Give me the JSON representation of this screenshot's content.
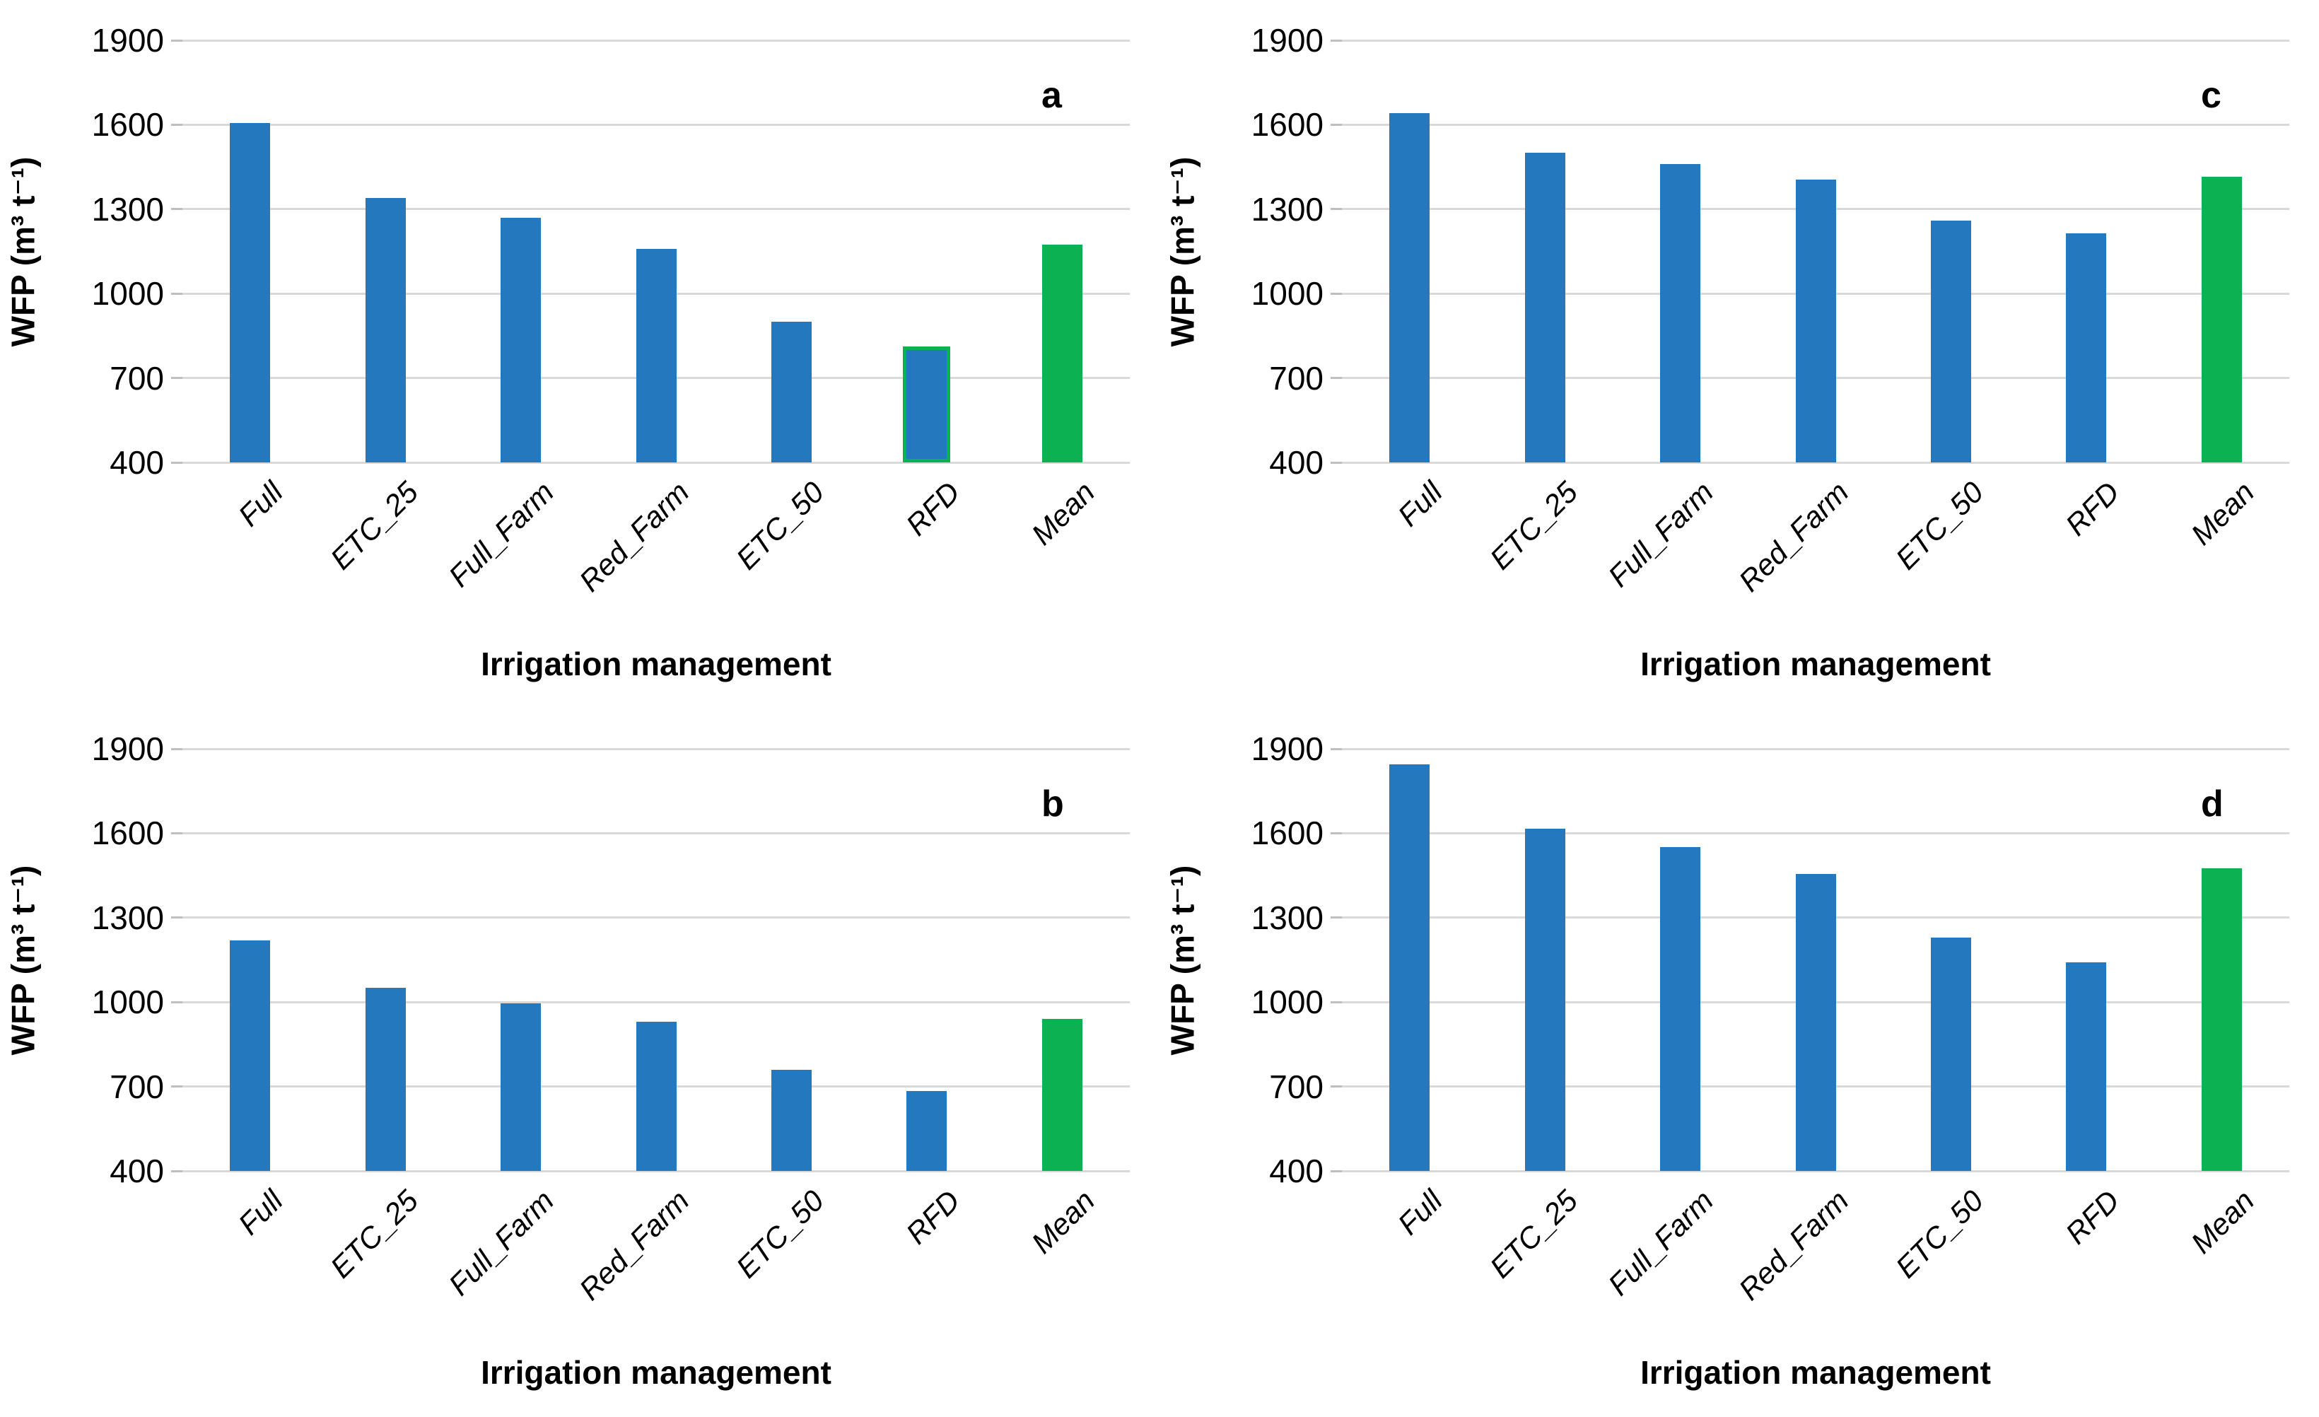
{
  "figure": {
    "description": "Four bar-chart panels (a, c on top row; b, d on bottom row) of water footprint (WFP) under different irrigation management treatments",
    "panels_order": [
      "a",
      "c",
      "b",
      "d"
    ],
    "colors": {
      "bar_blue": "#2478BE",
      "bar_green": "#0CB151",
      "rfd_outline_green": "#0CB151",
      "gridline": "#D9D9D9",
      "tick": "#BFBFBF",
      "text": "#000000"
    }
  },
  "chart_data": [
    {
      "type": "bar",
      "panel_label": "a",
      "grid_position": {
        "row": 0,
        "col": 0
      },
      "title": "",
      "xlabel": "Irrigation management",
      "ylabel": "WFP (m³ t⁻¹)",
      "ylim": [
        400,
        1900
      ],
      "yticks": [
        1900,
        1600,
        1300,
        1000,
        700,
        400
      ],
      "grid": true,
      "legend": "none",
      "categories": [
        "Full",
        "ETC_25",
        "Full_Farm",
        "Red_Farm",
        "ETC_50",
        "RFD",
        "Mean"
      ],
      "values": [
        1605,
        1340,
        1270,
        1160,
        900,
        800,
        1175
      ],
      "mean_bar_index": 6,
      "outlined_bar_index": 5
    },
    {
      "type": "bar",
      "panel_label": "c",
      "grid_position": {
        "row": 0,
        "col": 1
      },
      "title": "",
      "xlabel": "Irrigation management",
      "ylabel": "WFP (m³ t⁻¹)",
      "ylim": [
        400,
        1900
      ],
      "yticks": [
        1900,
        1600,
        1300,
        1000,
        700,
        400
      ],
      "grid": true,
      "legend": "none",
      "categories": [
        "Full",
        "ETC_25",
        "Full_Farm",
        "Red_Farm",
        "ETC_50",
        "RFD",
        "Mean"
      ],
      "values": [
        1640,
        1500,
        1460,
        1405,
        1260,
        1215,
        1415
      ],
      "mean_bar_index": 6,
      "outlined_bar_index": null
    },
    {
      "type": "bar",
      "panel_label": "b",
      "grid_position": {
        "row": 1,
        "col": 0
      },
      "title": "",
      "xlabel": "Irrigation management",
      "ylabel": "WFP (m³ t⁻¹)",
      "ylim": [
        400,
        1900
      ],
      "yticks": [
        1900,
        1600,
        1300,
        1000,
        700,
        400
      ],
      "grid": true,
      "legend": "none",
      "categories": [
        "Full",
        "ETC_25",
        "Full_Farm",
        "Red_Farm",
        "ETC_50",
        "RFD",
        "Mean"
      ],
      "values": [
        1220,
        1050,
        995,
        930,
        760,
        685,
        940
      ],
      "mean_bar_index": 6,
      "outlined_bar_index": null
    },
    {
      "type": "bar",
      "panel_label": "d",
      "grid_position": {
        "row": 1,
        "col": 1
      },
      "title": "",
      "xlabel": "Irrigation management",
      "ylabel": "WFP (m³ t⁻¹)",
      "ylim": [
        400,
        1900
      ],
      "yticks": [
        1900,
        1600,
        1300,
        1000,
        700,
        400
      ],
      "grid": true,
      "legend": "none",
      "categories": [
        "Full",
        "ETC_25",
        "Full_Farm",
        "Red_Farm",
        "ETC_50",
        "RFD",
        "Mean"
      ],
      "values": [
        1845,
        1615,
        1550,
        1455,
        1230,
        1140,
        1475
      ],
      "mean_bar_index": 6,
      "outlined_bar_index": null
    }
  ]
}
